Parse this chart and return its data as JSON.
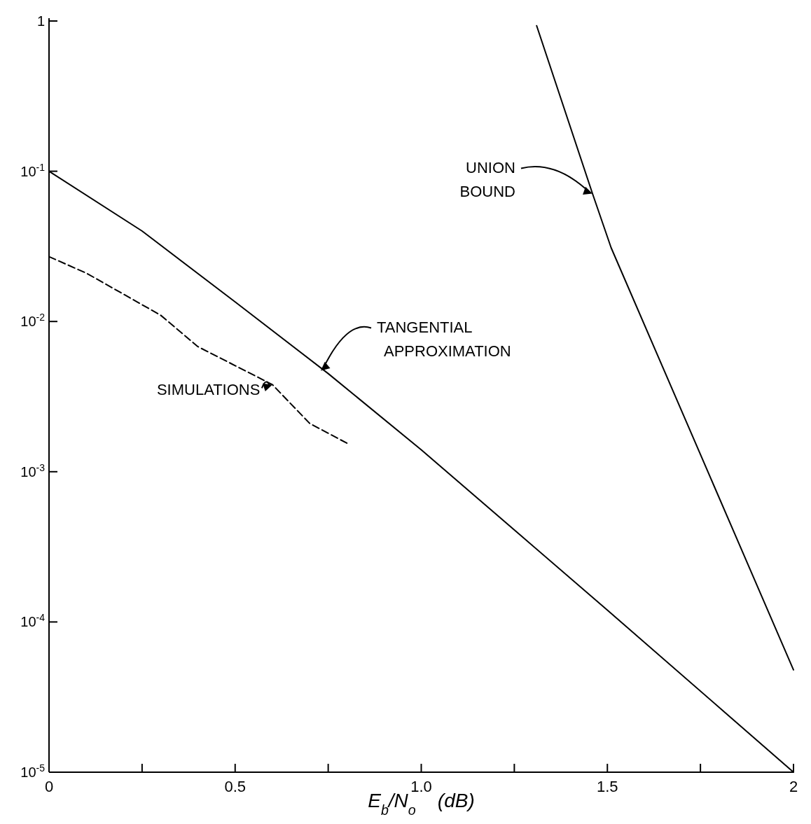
{
  "chart_data": {
    "type": "line",
    "log": "y",
    "xlabel": "E$_{b}$/N$_{o}$    (dB)",
    "xlim": [
      0,
      2
    ],
    "ylim": [
      1e-05,
      1
    ],
    "xticks": [
      0,
      {
        "value": 0.25,
        "label": null
      },
      0.5,
      {
        "value": 0.75,
        "label": null
      },
      {
        "value": 1,
        "label": "1.0"
      },
      {
        "value": 1.25,
        "label": null
      },
      1.5,
      {
        "value": 1.75,
        "label": null
      },
      2
    ],
    "yticks": [
      {
        "value": 1e-05,
        "label": "10$^{-5}$"
      },
      {
        "value": 0.0001,
        "label": "10$^{-4}$"
      },
      {
        "value": 0.001,
        "label": "10$^{-3}$"
      },
      {
        "value": 0.01,
        "label": "10$^{-2}$"
      },
      {
        "value": 0.1,
        "label": "10$^{-1}$"
      },
      1
    ],
    "grid": false,
    "marker": "none",
    "series": [
      {
        "color": "#000000",
        "line_style": "solid",
        "x": [
          0,
          0.25,
          0.5,
          0.75,
          1,
          1.5,
          2
        ],
        "values": [
          0.1,
          0.04,
          0.0135,
          0.0045,
          0.0014,
          0.00012,
          1e-05
        ]
      },
      {
        "color": "#000000",
        "line_style": "solid",
        "x": [
          1.31,
          1.46,
          1.51,
          2
        ],
        "values": [
          0.93,
          0.071,
          0.031,
          4.8e-05
        ]
      },
      {
        "color": "#000000",
        "line_style": "dashed",
        "x": [
          0,
          0.1,
          0.3,
          0.4,
          0.6,
          0.7,
          0.8
        ],
        "values": [
          0.027,
          0.021,
          0.011,
          0.0068,
          0.0038,
          0.0021,
          0.00155
        ]
      }
    ],
    "annotations": [
      {
        "text": "UNION BOUND",
        "x": 1.46,
        "y": 0.071
      },
      {
        "text": "TANGENTIAL APPROXIMATION",
        "x": 0.73,
        "y": 0.0047
      },
      {
        "text": "SIMULATIONS",
        "x": 0.6,
        "y": 0.0038
      }
    ]
  }
}
